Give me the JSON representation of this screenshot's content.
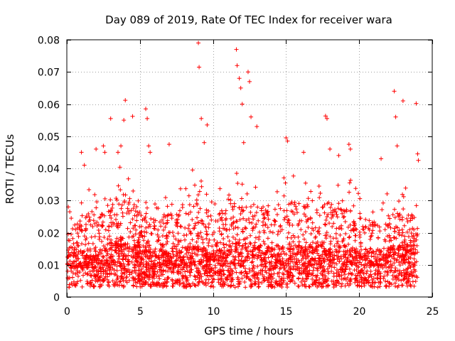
{
  "chart_data": {
    "type": "scatter",
    "title": "Day 089 of 2019, Rate Of TEC Index for receiver wara",
    "xlabel": "GPS time / hours",
    "ylabel": "ROTI / TECUs",
    "xlim": [
      0,
      25
    ],
    "ylim": [
      0,
      0.08
    ],
    "xticks": [
      0,
      5,
      10,
      15,
      20,
      25
    ],
    "xtick_labels": [
      "0",
      "5",
      "10",
      "15",
      "20",
      "25"
    ],
    "yticks": [
      0,
      0.01,
      0.02,
      0.03,
      0.04,
      0.05,
      0.06,
      0.07,
      0.08
    ],
    "ytick_labels": [
      "0",
      "0.01",
      "0.02",
      "0.03",
      "0.04",
      "0.05",
      "0.06",
      "0.07",
      "0.08"
    ],
    "grid": true,
    "marker": "+",
    "marker_color": "#ff0000",
    "series": [
      {
        "name": "ROTI",
        "points": [
          [
            0.1,
            0.028
          ],
          [
            0.2,
            0.0265
          ],
          [
            0.3,
            0.0245
          ],
          [
            1.0,
            0.045
          ],
          [
            1.2,
            0.041
          ],
          [
            2.0,
            0.046
          ],
          [
            2.5,
            0.047
          ],
          [
            2.6,
            0.045
          ],
          [
            3.0,
            0.0555
          ],
          [
            3.5,
            0.045
          ],
          [
            3.7,
            0.047
          ],
          [
            3.9,
            0.055
          ],
          [
            4.0,
            0.0612
          ],
          [
            4.5,
            0.0562
          ],
          [
            5.4,
            0.0585
          ],
          [
            5.5,
            0.0555
          ],
          [
            5.6,
            0.047
          ],
          [
            5.7,
            0.045
          ],
          [
            7.0,
            0.0475
          ],
          [
            8.6,
            0.0395
          ],
          [
            9.0,
            0.079
          ],
          [
            9.05,
            0.0715
          ],
          [
            9.2,
            0.0555
          ],
          [
            9.4,
            0.048
          ],
          [
            9.6,
            0.0535
          ],
          [
            11.6,
            0.077
          ],
          [
            11.65,
            0.072
          ],
          [
            11.8,
            0.068
          ],
          [
            11.9,
            0.065
          ],
          [
            12.0,
            0.06
          ],
          [
            12.1,
            0.048
          ],
          [
            12.4,
            0.07
          ],
          [
            12.5,
            0.067
          ],
          [
            12.6,
            0.056
          ],
          [
            13.0,
            0.053
          ],
          [
            15.0,
            0.0495
          ],
          [
            15.1,
            0.0485
          ],
          [
            16.2,
            0.045
          ],
          [
            17.7,
            0.0563
          ],
          [
            17.8,
            0.0555
          ],
          [
            18.0,
            0.046
          ],
          [
            18.6,
            0.044
          ],
          [
            19.3,
            0.0475
          ],
          [
            19.4,
            0.046
          ],
          [
            21.5,
            0.043
          ],
          [
            22.4,
            0.064
          ],
          [
            22.5,
            0.056
          ],
          [
            22.6,
            0.047
          ],
          [
            23.0,
            0.061
          ],
          [
            23.9,
            0.0602
          ],
          [
            24.0,
            0.0445
          ],
          [
            24.05,
            0.0425
          ]
        ]
      }
    ],
    "bulk_profile": {
      "description": "dense ROTI band, hourly",
      "hours": [
        0,
        1,
        2,
        3,
        4,
        5,
        6,
        7,
        8,
        9,
        10,
        11,
        12,
        13,
        14,
        15,
        16,
        17,
        18,
        19,
        20,
        21,
        22,
        23,
        24
      ],
      "median": [
        0.01,
        0.009,
        0.009,
        0.01,
        0.011,
        0.01,
        0.009,
        0.009,
        0.01,
        0.01,
        0.009,
        0.01,
        0.011,
        0.01,
        0.01,
        0.01,
        0.01,
        0.01,
        0.01,
        0.01,
        0.009,
        0.009,
        0.01,
        0.01,
        0.01
      ],
      "upper": [
        0.024,
        0.032,
        0.038,
        0.038,
        0.042,
        0.034,
        0.03,
        0.033,
        0.036,
        0.038,
        0.034,
        0.036,
        0.04,
        0.036,
        0.036,
        0.038,
        0.038,
        0.034,
        0.038,
        0.04,
        0.032,
        0.03,
        0.034,
        0.036,
        0.03
      ]
    }
  }
}
